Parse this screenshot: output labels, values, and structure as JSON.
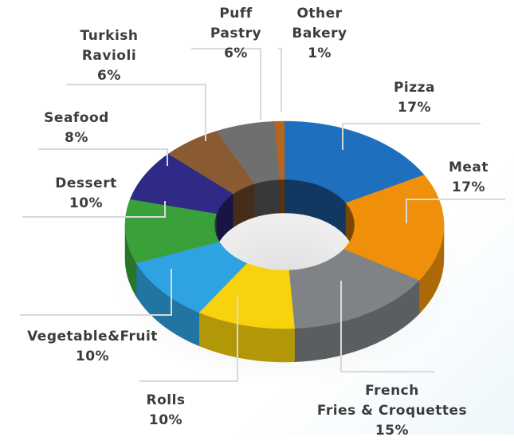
{
  "chart_data": {
    "type": "pie",
    "style": "3d-donut",
    "slices": [
      {
        "key": "pizza",
        "name_lines": [
          "Pizza"
        ],
        "value_label": "17%",
        "value": 17,
        "color": "#1f6fbf"
      },
      {
        "key": "meat",
        "name_lines": [
          "Meat"
        ],
        "value_label": "17%",
        "value": 17,
        "color": "#f0900a"
      },
      {
        "key": "fries",
        "name_lines": [
          "French",
          "Fries & Croquettes"
        ],
        "value_label": "15%",
        "value": 15,
        "color": "#7f8386"
      },
      {
        "key": "rolls",
        "name_lines": [
          "Rolls"
        ],
        "value_label": "10%",
        "value": 10,
        "color": "#f7d20d"
      },
      {
        "key": "vegfruit",
        "name_lines": [
          "Vegetable&Fruit"
        ],
        "value_label": "10%",
        "value": 10,
        "color": "#2fa3e2"
      },
      {
        "key": "dessert",
        "name_lines": [
          "Dessert"
        ],
        "value_label": "10%",
        "value": 10,
        "color": "#3aa13a"
      },
      {
        "key": "seafood",
        "name_lines": [
          "Seafood"
        ],
        "value_label": "8%",
        "value": 8,
        "color": "#2f2a86"
      },
      {
        "key": "ravioli",
        "name_lines": [
          "Turkish",
          "Ravioli"
        ],
        "value_label": "6%",
        "value": 6,
        "color": "#8a5a32"
      },
      {
        "key": "puff",
        "name_lines": [
          "Puff",
          "Pastry"
        ],
        "value_label": "6%",
        "value": 6,
        "color": "#6f6f6f"
      },
      {
        "key": "other",
        "name_lines": [
          "Other",
          "Bakery"
        ],
        "value_label": "1%",
        "value": 1,
        "color": "#b5651d"
      }
    ]
  }
}
